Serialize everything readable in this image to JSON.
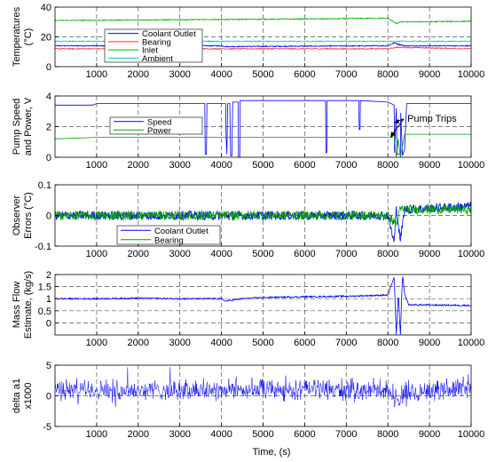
{
  "figure": {
    "xlabel": "Time, (s)",
    "x_ticks": [
      "1000",
      "2000",
      "3000",
      "4000",
      "5000",
      "6000",
      "7000",
      "8000",
      "9000",
      "10000"
    ]
  },
  "chart_data": [
    {
      "type": "line",
      "ylabel": [
        "Temperatures",
        "(°C)"
      ],
      "xlim": [
        0,
        10000
      ],
      "ylim": [
        0,
        40
      ],
      "y_ticks": [
        "0",
        "20",
        "40"
      ],
      "grid": true,
      "legend_position": "center-left",
      "series": [
        {
          "name": "Coolant Outlet",
          "color": "#0000ff",
          "x": [
            0,
            4000,
            4100,
            8000,
            8150,
            8250,
            8400,
            10000
          ],
          "y": [
            14,
            14,
            13.5,
            14,
            16,
            15,
            14,
            14
          ]
        },
        {
          "name": "Bearing",
          "color": "#ff3333",
          "x": [
            0,
            8000,
            8200,
            10000
          ],
          "y": [
            12,
            12,
            13,
            12
          ]
        },
        {
          "name": "Inlet",
          "color": "#00b000",
          "x": [
            0,
            3000,
            6000,
            8000,
            8200,
            8300,
            10000
          ],
          "y": [
            31,
            31.5,
            32,
            32.5,
            29,
            30,
            30.5
          ]
        },
        {
          "name": "Ambient",
          "color": "#00cccc",
          "x": [
            0,
            10000
          ],
          "y": [
            17,
            17
          ]
        }
      ]
    },
    {
      "type": "line",
      "ylabel": [
        "Pump Speed",
        "and Power, V"
      ],
      "xlim": [
        0,
        10000
      ],
      "ylim": [
        0,
        4
      ],
      "y_ticks": [
        "0",
        "2",
        "4"
      ],
      "grid": true,
      "legend_position": "center-left",
      "annotation": "Pump Trips",
      "series": [
        {
          "name": "Speed",
          "color": "#0000ff",
          "x": [
            0,
            900,
            1000,
            3600,
            3610,
            3640,
            3650,
            4100,
            4110,
            4130,
            4150,
            4200,
            4220,
            4250,
            4270,
            4400,
            4410,
            4440,
            4450,
            6500,
            6510,
            6530,
            6540,
            7300,
            7310,
            7330,
            7340,
            8000,
            8150,
            8160,
            8200,
            8220,
            8300,
            8310,
            8350,
            8400,
            8450,
            10000
          ],
          "y": [
            3.4,
            3.4,
            3.5,
            3.5,
            0.2,
            0.2,
            3.5,
            3.5,
            1.5,
            0.2,
            3.5,
            3.5,
            0.1,
            0.1,
            3.6,
            3.6,
            0.0,
            0.0,
            3.7,
            3.7,
            0.3,
            0.3,
            3.7,
            3.7,
            1.8,
            1.8,
            3.7,
            3.6,
            3.4,
            0.3,
            3.2,
            0.2,
            0.2,
            2.9,
            0.1,
            0.5,
            3.5,
            3.5
          ]
        },
        {
          "name": "Power",
          "color": "#00a000",
          "x": [
            0,
            1000,
            8100,
            8150,
            8200,
            8250,
            8300,
            8400,
            10000
          ],
          "y": [
            1.2,
            1.3,
            1.3,
            1.5,
            0.0,
            1.2,
            0.0,
            1.5,
            1.5
          ]
        }
      ]
    },
    {
      "type": "line",
      "ylabel": [
        "Observer",
        "Errors (°C)"
      ],
      "xlim": [
        0,
        10000
      ],
      "ylim": [
        -0.1,
        0.1
      ],
      "y_ticks": [
        "-0.1",
        "0",
        "0.1"
      ],
      "grid": true,
      "legend_position": "bottom-center",
      "series": [
        {
          "name": "Coolant Outlet",
          "color": "#0000ff",
          "x": [
            0,
            4000,
            8000,
            8150,
            8200,
            8300,
            8400,
            10000
          ],
          "y": [
            0.0,
            0.0,
            0.0,
            -0.09,
            0.02,
            -0.08,
            0.02,
            0.03
          ]
        },
        {
          "name": "Bearing",
          "color": "#00a000",
          "x": [
            0,
            8000,
            8200,
            8300,
            10000
          ],
          "y": [
            0.0,
            0.0,
            -0.03,
            0.02,
            0.02
          ]
        }
      ]
    },
    {
      "type": "line",
      "ylabel": [
        "Mass Flow",
        "Estimate, (kg/s)"
      ],
      "xlim": [
        0,
        10000
      ],
      "ylim": [
        -0.5,
        2
      ],
      "y_ticks": [
        "0",
        "0.5",
        "1",
        "1.5",
        "2"
      ],
      "grid": true,
      "series": [
        {
          "name": "Mass Flow",
          "color": "#0000ff",
          "x": [
            0,
            1000,
            2000,
            3000,
            4000,
            4100,
            4500,
            5000,
            6000,
            7000,
            8000,
            8150,
            8200,
            8250,
            8300,
            8350,
            8400,
            8500,
            10000
          ],
          "y": [
            1.0,
            1.0,
            1.02,
            1.0,
            1.0,
            0.9,
            1.0,
            1.05,
            1.08,
            1.1,
            1.15,
            1.9,
            -0.5,
            1.2,
            -0.5,
            2.0,
            1.2,
            0.75,
            0.72
          ]
        }
      ]
    },
    {
      "type": "line",
      "ylabel": [
        "delta a1",
        "x1000"
      ],
      "xlim": [
        0,
        10000
      ],
      "ylim": [
        -5,
        5
      ],
      "y_ticks": [
        "-5",
        "0",
        "5"
      ],
      "grid": true,
      "series": [
        {
          "name": "delta a1",
          "color": "#0000ff",
          "x": [
            0,
            4000,
            8000,
            8200,
            8400,
            10000
          ],
          "y": [
            1.0,
            1.0,
            1.0,
            -1.0,
            0.5,
            1.5
          ],
          "noise_amplitude": 1.5
        }
      ]
    }
  ]
}
